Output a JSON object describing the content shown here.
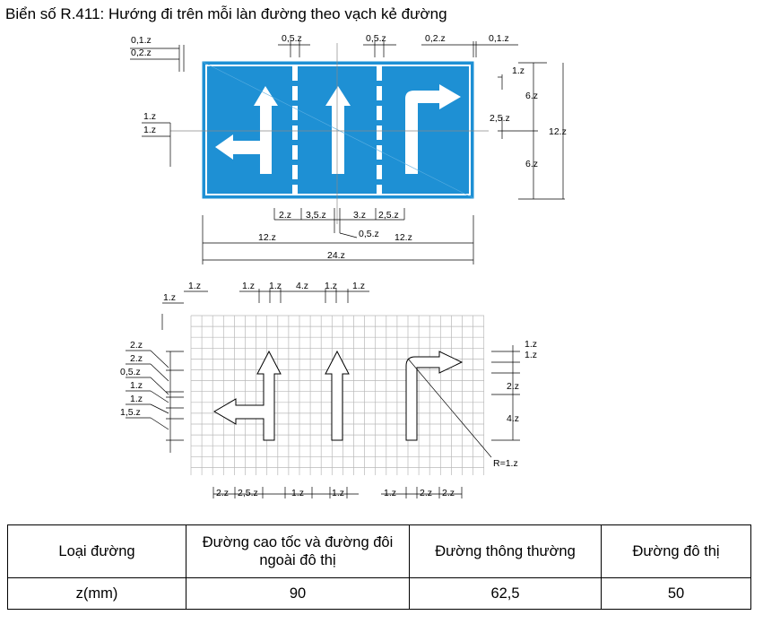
{
  "title": "Biển số R.411: Hướng đi trên mỗi làn đường theo vạch kẻ đường",
  "top_dims": {
    "d_01z": "0,1.z",
    "d_02z": "0,2.z",
    "d_05z_a": "0,5.z",
    "d_05z_b": "0,5.z",
    "d_02z_r": "0,2.z",
    "d_01z_r": "0,1.z",
    "l_1z_a": "1.z",
    "l_1z_b": "1.z",
    "r_1z": "1.z",
    "r_6z_a": "6.z",
    "r_25z": "2,5.z",
    "r_6z_b": "6.z",
    "r_12z": "12.z",
    "b_2z": "2.z",
    "b_35z": "3,5.z",
    "b_3z": "3.z",
    "b_25z": "2,5.z",
    "b_12z_l": "12.z",
    "b_05z": "0,5.z",
    "b_12z_r": "12.z",
    "b_24z": "24.z"
  },
  "grid_dims": {
    "t_1z_a": "1.z",
    "t_1z_b": "1.z",
    "t_1z_c": "1.z",
    "t_1z_d": "1.z",
    "t_4z": "4.z",
    "t_1z_e": "1.z",
    "t_1z_f": "1.z",
    "l_2z_a": "2.z",
    "l_2z_b": "2.z",
    "l_05z": "0,5.z",
    "l_1z_a": "1.z",
    "l_1z_b": "1.z",
    "l_15z": "1,5.z",
    "r_1z_a": "1.z",
    "r_1z_b": "1.z",
    "r_2z": "2.z",
    "r_4z": "4.z",
    "r_R": "R=1.z",
    "b_2z_a": "2.z",
    "b_25z": "2,5.z",
    "b_1z_a": "1.z",
    "b_1z_b": "1.z",
    "b_1z_c": "1.z",
    "b_2z_b": "2.z",
    "b_2z_c": "2.z"
  },
  "colors": {
    "sign_blue": "#1e90d4",
    "grid_line": "#b8b8b8"
  },
  "table": {
    "header": [
      "Loại đường",
      "Đường cao tốc và đường đôi ngoài đô thị",
      "Đường thông thường",
      "Đường đô thị"
    ],
    "row": [
      "z(mm)",
      "90",
      "62,5",
      "50"
    ]
  }
}
